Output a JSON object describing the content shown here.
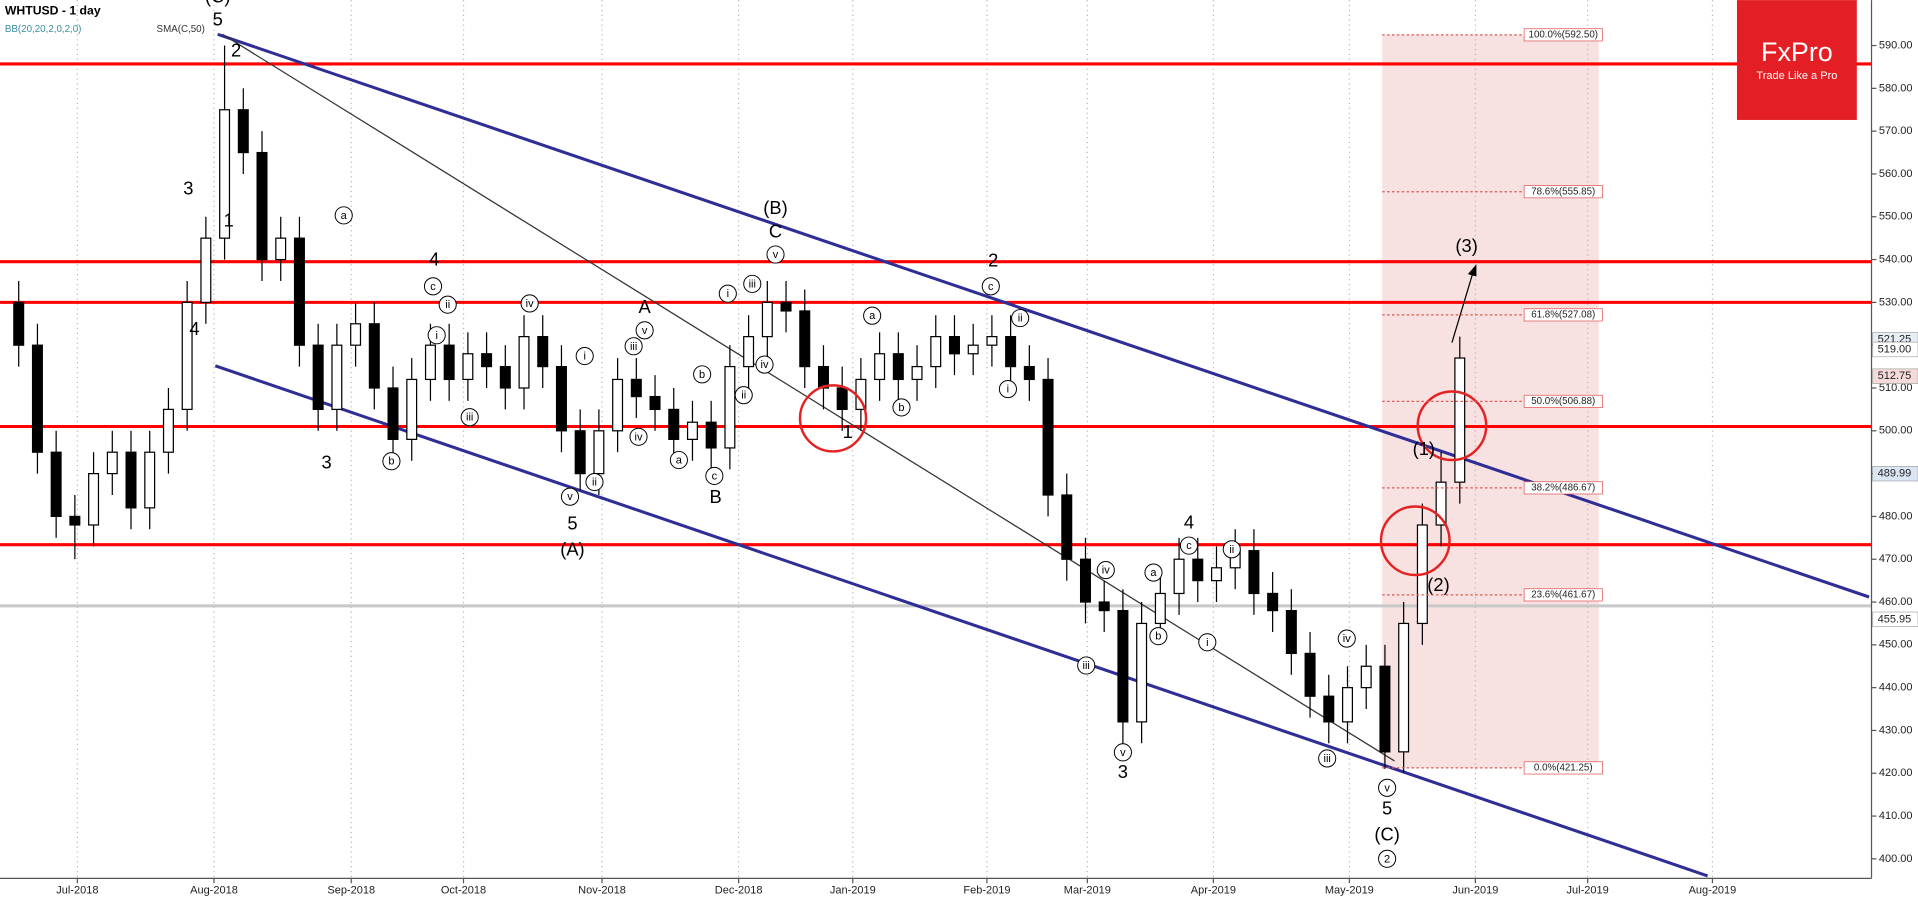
{
  "header": {
    "symbol": "WHTUSD - 1 day",
    "indicators": [
      "BB(20,20,2,0,2,0)",
      "SMA(C,50)"
    ]
  },
  "logo": {
    "brand": "FxPro",
    "tagline": "Trade Like a Pro"
  },
  "chart_data": {
    "type": "candlestick",
    "x": [
      3,
      6,
      9,
      12,
      15,
      18,
      21,
      24,
      27,
      30,
      33,
      36,
      39,
      42,
      45,
      48,
      51,
      54,
      57,
      60,
      63,
      66,
      69,
      72,
      75,
      78,
      81,
      84,
      87,
      90,
      93,
      96,
      99,
      102,
      105,
      108,
      111,
      114,
      117,
      120,
      123,
      126,
      129,
      132,
      135,
      138,
      141,
      144,
      147,
      150,
      153,
      156,
      159,
      162,
      165,
      168,
      171,
      174,
      177,
      180,
      183,
      186,
      189,
      192,
      195,
      198,
      201,
      204,
      207,
      210,
      213,
      216,
      219,
      222,
      225,
      228,
      231,
      234
    ],
    "open": [
      530,
      520,
      495,
      480,
      478,
      490,
      495,
      482,
      495,
      505,
      530,
      545,
      575,
      565,
      540,
      545,
      520,
      505,
      520,
      525,
      510,
      498,
      512,
      520,
      512,
      518,
      515,
      510,
      522,
      515,
      500,
      490,
      500,
      512,
      508,
      505,
      498,
      502,
      496,
      515,
      522,
      530,
      528,
      515,
      510,
      505,
      512,
      518,
      512,
      515,
      522,
      518,
      520,
      522,
      515,
      512,
      485,
      470,
      460,
      458,
      432,
      455,
      462,
      470,
      465,
      468,
      472,
      462,
      458,
      448,
      438,
      432,
      440,
      445,
      425,
      455,
      478,
      488
    ],
    "high": [
      535,
      525,
      500,
      485,
      495,
      500,
      500,
      500,
      510,
      535,
      550,
      590,
      580,
      570,
      550,
      550,
      525,
      525,
      530,
      530,
      515,
      517,
      525,
      525,
      523,
      523,
      520,
      527,
      527,
      520,
      505,
      505,
      517,
      517,
      513,
      510,
      507,
      507,
      520,
      527,
      535,
      535,
      533,
      520,
      515,
      517,
      523,
      523,
      520,
      527,
      527,
      525,
      527,
      527,
      520,
      517,
      490,
      475,
      465,
      463,
      460,
      467,
      475,
      475,
      473,
      477,
      477,
      467,
      463,
      453,
      443,
      445,
      450,
      450,
      460,
      483,
      495,
      522
    ],
    "low": [
      515,
      490,
      475,
      470,
      473,
      485,
      477,
      477,
      490,
      500,
      525,
      540,
      560,
      535,
      535,
      515,
      500,
      500,
      515,
      505,
      493,
      493,
      507,
      507,
      507,
      510,
      505,
      505,
      510,
      495,
      486,
      485,
      495,
      503,
      500,
      493,
      493,
      491,
      491,
      510,
      517,
      523,
      510,
      505,
      500,
      500,
      507,
      507,
      507,
      510,
      513,
      513,
      515,
      510,
      507,
      480,
      465,
      455,
      453,
      425,
      427,
      450,
      457,
      460,
      460,
      463,
      457,
      453,
      443,
      433,
      427,
      427,
      435,
      421,
      420,
      450,
      473,
      483
    ],
    "close": [
      520,
      495,
      480,
      478,
      490,
      495,
      482,
      495,
      505,
      530,
      545,
      575,
      565,
      540,
      545,
      520,
      505,
      520,
      525,
      510,
      498,
      512,
      520,
      512,
      518,
      515,
      510,
      522,
      515,
      500,
      490,
      500,
      512,
      508,
      505,
      498,
      502,
      496,
      515,
      522,
      530,
      528,
      515,
      510,
      505,
      512,
      518,
      512,
      515,
      522,
      518,
      520,
      522,
      515,
      512,
      485,
      470,
      460,
      458,
      432,
      455,
      462,
      470,
      465,
      468,
      472,
      462,
      458,
      448,
      438,
      432,
      440,
      445,
      425,
      455,
      478,
      488,
      517
    ],
    "up_color": "#ffffff",
    "down_color": "#000000",
    "xlim": [
      0,
      300
    ],
    "ylim": [
      395.45,
      600.62
    ],
    "xticks": [
      {
        "value": 12.4,
        "label": "Jul-2018"
      },
      {
        "value": 34.3,
        "label": "Aug-2018"
      },
      {
        "value": 56.3,
        "label": "Sep-2018"
      },
      {
        "value": 74.3,
        "label": "Oct-2018"
      },
      {
        "value": 96.5,
        "label": "Nov-2018"
      },
      {
        "value": 118.4,
        "label": "Dec-2018"
      },
      {
        "value": 136.7,
        "label": "Jan-2019"
      },
      {
        "value": 158.2,
        "label": "Feb-2019"
      },
      {
        "value": 174.3,
        "label": "Mar-2019"
      },
      {
        "value": 194.5,
        "label": "Apr-2019"
      },
      {
        "value": 216.3,
        "label": "May-2019"
      },
      {
        "value": 236.5,
        "label": "Jun-2019"
      },
      {
        "value": 254.5,
        "label": "Jul-2019"
      },
      {
        "value": 274.5,
        "label": "Aug-2019"
      }
    ],
    "yticks": [
      {
        "value": 400,
        "label": "400.00"
      },
      {
        "value": 410,
        "label": "410.00"
      },
      {
        "value": 420,
        "label": "420.00"
      },
      {
        "value": 430,
        "label": "430.00"
      },
      {
        "value": 440,
        "label": "440.00"
      },
      {
        "value": 450,
        "label": "450.00"
      },
      {
        "value": 460,
        "label": "460.00"
      },
      {
        "value": 470,
        "label": "470.00"
      },
      {
        "value": 480,
        "label": "480.00"
      },
      {
        "value": 490,
        "label": "490.00"
      },
      {
        "value": 500,
        "label": "500.00"
      },
      {
        "value": 510,
        "label": "510.00"
      },
      {
        "value": 520,
        "label": "520.00"
      },
      {
        "value": 530,
        "label": "530.00"
      },
      {
        "value": 540,
        "label": "540.00"
      },
      {
        "value": 550,
        "label": "550.00"
      },
      {
        "value": 560,
        "label": "560.00"
      },
      {
        "value": 570,
        "label": "570.00"
      },
      {
        "value": 580,
        "label": "580.00"
      },
      {
        "value": 590,
        "label": "590.00"
      }
    ],
    "grid": true,
    "levels": [
      {
        "value": 585.7,
        "color": "#ff0000"
      },
      {
        "value": 539.5,
        "color": "#ff0000"
      },
      {
        "value": 530,
        "color": "#ff0000"
      },
      {
        "value": 501,
        "color": "#ff0000"
      },
      {
        "value": 473.4,
        "color": "#ff0000"
      },
      {
        "value": 459.1,
        "color": "#c8c8c8"
      }
    ],
    "fibonacci": [
      {
        "value": 592.5,
        "label": "100.0%(592.50)"
      },
      {
        "value": 555.85,
        "label": "78.6%(555.85)"
      },
      {
        "value": 527.08,
        "label": "61.8%(527.08)"
      },
      {
        "value": 506.88,
        "label": "50.0%(506.88)"
      },
      {
        "value": 486.67,
        "label": "38.2%(486.67)"
      },
      {
        "value": 461.67,
        "label": "23.6%(461.67)"
      },
      {
        "value": 421.25,
        "label": "0.0%(421.25)"
      }
    ],
    "price_markers": [
      {
        "value": 521.25,
        "label": "521.25",
        "color": "#e8eef6"
      },
      {
        "value": 519,
        "label": "519.00",
        "color": "#ffffff"
      },
      {
        "value": 512.75,
        "label": "512.75",
        "color": "#f6dada"
      },
      {
        "value": 489.99,
        "label": "489.99",
        "color": "#dbe6f5"
      },
      {
        "value": 455.95,
        "label": "455.95",
        "color": "#ffffff"
      }
    ],
    "annotations": [
      {
        "text": "(C)"
      },
      {
        "text": "5"
      },
      {
        "text": "2"
      },
      {
        "text": "3"
      },
      {
        "text": "1"
      },
      {
        "text": "4"
      },
      {
        "text": "4"
      },
      {
        "text": "3"
      },
      {
        "text": "5"
      },
      {
        "text": "(A)"
      },
      {
        "text": "A"
      },
      {
        "text": "B"
      },
      {
        "text": "(B)"
      },
      {
        "text": "C"
      },
      {
        "text": "1"
      },
      {
        "text": "2"
      },
      {
        "text": "4"
      },
      {
        "text": "3"
      },
      {
        "text": "5"
      },
      {
        "text": "(C)"
      },
      {
        "text": "2",
        "circled": true
      },
      {
        "text": "(3)"
      },
      {
        "text": "(1)"
      },
      {
        "text": "(2)"
      },
      {
        "text": "a",
        "circled": true
      },
      {
        "text": "c",
        "circled": true
      },
      {
        "text": "ii",
        "circled": true
      },
      {
        "text": "i",
        "circled": true
      },
      {
        "text": "iii",
        "circled": true
      },
      {
        "text": "b",
        "circled": true
      },
      {
        "text": "iv",
        "circled": true
      },
      {
        "text": "v",
        "circled": true
      },
      {
        "text": "iii",
        "circled": true
      },
      {
        "text": "i",
        "circled": true
      },
      {
        "text": "iv",
        "circled": true
      },
      {
        "text": "ii",
        "circled": true
      },
      {
        "text": "v",
        "circled": true
      },
      {
        "text": "a",
        "circled": true
      },
      {
        "text": "b",
        "circled": true
      },
      {
        "text": "c",
        "circled": true
      },
      {
        "text": "ii",
        "circled": true
      },
      {
        "text": "i",
        "circled": true
      },
      {
        "text": "iii",
        "circled": true
      },
      {
        "text": "iv",
        "circled": true
      },
      {
        "text": "v",
        "circled": true
      },
      {
        "text": "a",
        "circled": true
      },
      {
        "text": "b",
        "circled": true
      },
      {
        "text": "c",
        "circled": true
      },
      {
        "text": "ii",
        "circled": true
      },
      {
        "text": "i",
        "circled": true
      },
      {
        "text": "iv",
        "circled": true
      },
      {
        "text": "iii",
        "circled": true
      },
      {
        "text": "v",
        "circled": true
      },
      {
        "text": "a",
        "circled": true
      },
      {
        "text": "b",
        "circled": true
      },
      {
        "text": "i",
        "circled": true
      },
      {
        "text": "c",
        "circled": true
      },
      {
        "text": "ii",
        "circled": true
      },
      {
        "text": "iv",
        "circled": true
      },
      {
        "text": "iii",
        "circled": true
      },
      {
        "text": "v",
        "circled": true
      }
    ]
  }
}
